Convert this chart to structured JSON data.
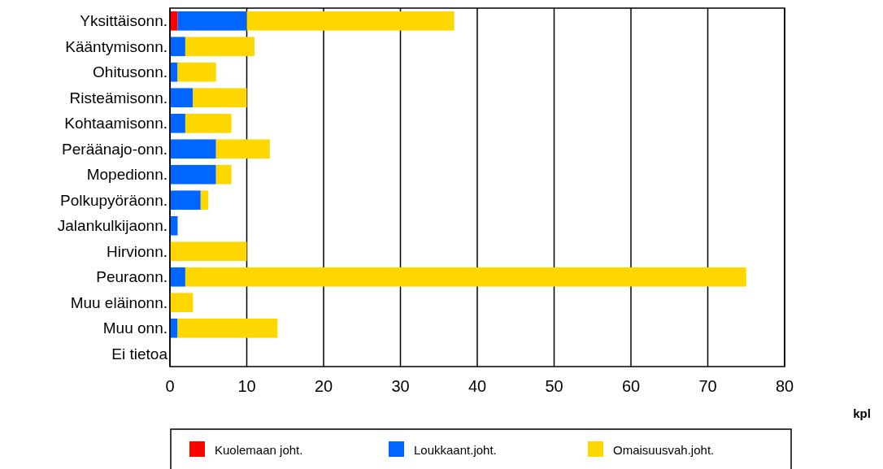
{
  "chart_data": {
    "type": "bar",
    "orientation": "horizontal",
    "stacked": true,
    "xlabel": "kpl",
    "categories": [
      "Yksittäisonn.",
      "Kääntymisonn.",
      "Ohitusonn.",
      "Risteämisonn.",
      "Kohtaamisonn.",
      "Peräänajo-onn.",
      "Mopedionn.",
      "Polkupyöräonn.",
      "Jalankulkijaonn.",
      "Hirvionn.",
      "Peuraonn.",
      "Muu eläinonn.",
      "Muu onn.",
      "Ei tietoa"
    ],
    "series": [
      {
        "name": "Kuolemaan joht.",
        "color": "#ff0000",
        "values": [
          1,
          0,
          0,
          0,
          0,
          0,
          0,
          0,
          0,
          0,
          0,
          0,
          0,
          0
        ]
      },
      {
        "name": "Loukkaant.joht.",
        "color": "#0066ff",
        "values": [
          9,
          2,
          1,
          3,
          2,
          6,
          6,
          4,
          1,
          0,
          2,
          0,
          1,
          0
        ]
      },
      {
        "name": "Omaisuusvah.joht.",
        "color": "#ffd700",
        "values": [
          27,
          9,
          5,
          7,
          6,
          7,
          2,
          1,
          0,
          10,
          73,
          3,
          13,
          0
        ]
      }
    ],
    "xlim": [
      0,
      80
    ],
    "xticks": [
      0,
      10,
      20,
      30,
      40,
      50,
      60,
      70,
      80
    ],
    "grid": "x",
    "legend": "bottom"
  }
}
